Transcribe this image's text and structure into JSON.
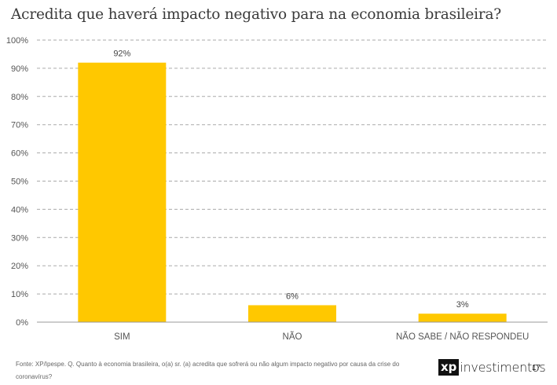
{
  "header": {
    "title": "Acredita que haverá impacto negativo para na economia brasileira?"
  },
  "chart_data": {
    "type": "bar",
    "title": "Acredita que haverá impacto negativo para na economia brasileira?",
    "categories": [
      "SIM",
      "NÃO",
      "NÃO SABE / NÃO RESPONDEU"
    ],
    "values": [
      92,
      6,
      3
    ],
    "data_labels": [
      "92%",
      "6%",
      "3%"
    ],
    "ylim": [
      0,
      100
    ],
    "yticks": [
      "0%",
      "10%",
      "20%",
      "30%",
      "40%",
      "50%",
      "60%",
      "70%",
      "80%",
      "90%",
      "100%"
    ],
    "grid": "dashed horizontal",
    "bar_color": "#FFC800",
    "legend": "none"
  },
  "footer": {
    "source": "Fonte: XP/Ipespe. Q. Quanto à economia brasileira, o(a) sr. (a) acredita que sofrerá ou não algum impacto negativo por causa da crise do coronavírus?",
    "logo_mark": "xp",
    "logo_word": "investimentos",
    "page_number": "17"
  }
}
